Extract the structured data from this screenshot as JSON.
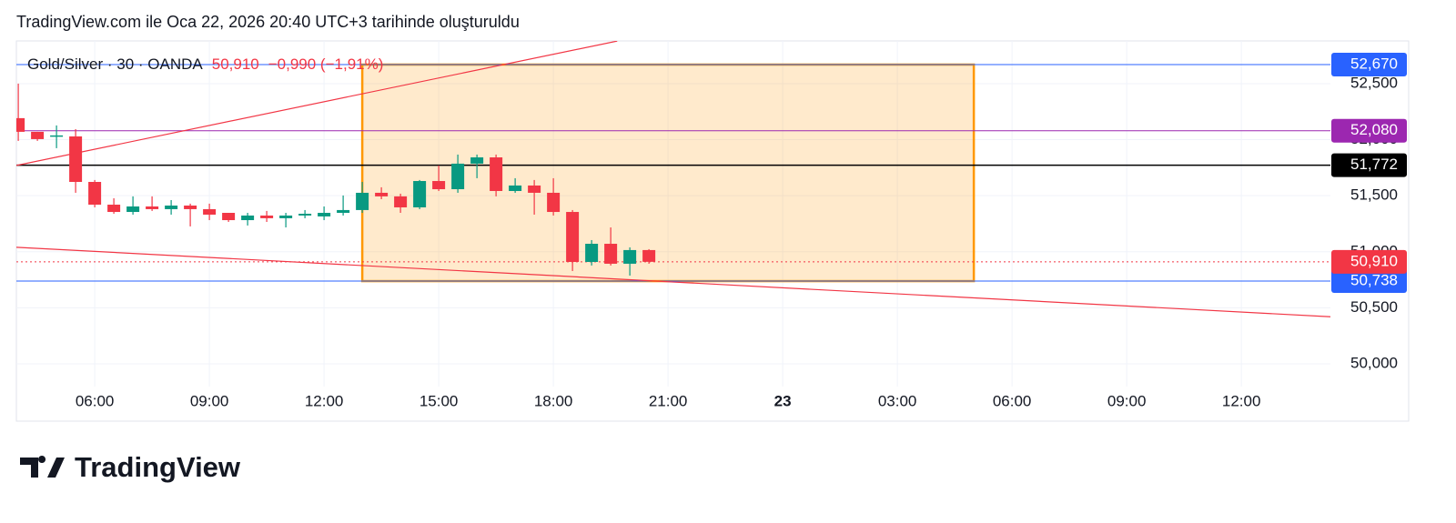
{
  "caption": "TradingView.com ile Oca 22, 2026 20:40 UTC+3 tarihinde oluşturuldu",
  "footer": {
    "brand": "TradingView"
  },
  "chart_data": {
    "type": "candlestick",
    "title": "Gold/Silver · 30 · OANDA",
    "legend_values": [
      "50,910",
      "−0,990 (−1,91%)"
    ],
    "x": [
      4,
      4.5,
      5,
      5.5,
      6,
      6.5,
      7,
      7.5,
      8,
      8.5,
      9,
      9.5,
      10,
      10.5,
      11,
      11.5,
      12,
      12.5,
      13,
      13.5,
      14,
      14.5,
      15,
      15.5,
      16,
      16.5,
      17,
      17.5,
      18,
      18.5,
      19,
      19.5,
      20,
      20.5
    ],
    "open": [
      52.192,
      52.07,
      52.03,
      52.029,
      51.623,
      51.42,
      51.355,
      51.404,
      51.38,
      51.412,
      51.38,
      51.347,
      51.282,
      51.323,
      51.299,
      51.323,
      51.315,
      51.347,
      51.372,
      51.526,
      51.494,
      51.396,
      51.631,
      51.558,
      51.786,
      51.842,
      51.542,
      51.591,
      51.526,
      51.355,
      50.909,
      51.071,
      50.893,
      51.015
    ],
    "high": [
      52.5,
      52.07,
      52.127,
      52.094,
      51.64,
      51.477,
      51.494,
      51.494,
      51.461,
      51.429,
      51.429,
      51.347,
      51.347,
      51.364,
      51.347,
      51.372,
      51.404,
      51.502,
      51.623,
      51.575,
      51.518,
      51.64,
      51.77,
      51.867,
      51.867,
      51.867,
      51.656,
      51.64,
      51.656,
      51.372,
      51.104,
      51.217,
      51.039,
      51.023
    ],
    "low": [
      51.989,
      51.989,
      51.924,
      51.526,
      51.396,
      51.339,
      51.331,
      51.364,
      51.331,
      51.226,
      51.282,
      51.266,
      51.234,
      51.266,
      51.217,
      51.299,
      51.282,
      51.323,
      51.347,
      51.469,
      51.347,
      51.38,
      51.542,
      51.526,
      51.656,
      51.494,
      51.526,
      51.331,
      51.323,
      50.828,
      50.877,
      50.877,
      50.787,
      50.893
    ],
    "close": [
      52.07,
      52.005,
      52.038,
      51.623,
      51.42,
      51.355,
      51.404,
      51.38,
      51.412,
      51.38,
      51.331,
      51.282,
      51.323,
      51.299,
      51.323,
      51.339,
      51.347,
      51.372,
      51.526,
      51.494,
      51.396,
      51.631,
      51.558,
      51.786,
      51.842,
      51.542,
      51.591,
      51.526,
      51.355,
      50.909,
      51.071,
      50.893,
      51.015,
      50.91
    ],
    "up_color": "#089981",
    "down_color": "#f23645",
    "xlim": [
      3.95,
      38.33
    ],
    "ylim": [
      49.797,
      52.881
    ],
    "xticks": [
      {
        "value": 6,
        "label": "06:00"
      },
      {
        "value": 9,
        "label": "09:00"
      },
      {
        "value": 12,
        "label": "12:00"
      },
      {
        "value": 15,
        "label": "15:00"
      },
      {
        "value": 18,
        "label": "18:00"
      },
      {
        "value": 21,
        "label": "21:00"
      },
      {
        "value": 24,
        "label": "23"
      },
      {
        "value": 27,
        "label": "03:00"
      },
      {
        "value": 30,
        "label": "06:00"
      },
      {
        "value": 33,
        "label": "09:00"
      },
      {
        "value": 36,
        "label": "12:00"
      }
    ],
    "yticks": [
      {
        "value": 50,
        "label": "50,000"
      },
      {
        "value": 50.5,
        "label": "50,500"
      },
      {
        "value": 51,
        "label": "51,000"
      },
      {
        "value": 51.5,
        "label": "51,500"
      },
      {
        "value": 52,
        "label": "52,000"
      },
      {
        "value": 52.5,
        "label": "52,500"
      }
    ],
    "grid": true,
    "rectangle": {
      "x": [
        13,
        29
      ],
      "y": [
        50.738,
        52.67
      ],
      "color": "#ff9800"
    },
    "trendlines": [
      {
        "points": [
          [
            3.95,
            51.77
          ],
          [
            19.67,
            52.88
          ]
        ],
        "color": "#f23645"
      },
      {
        "points": [
          [
            3.95,
            51.04
          ],
          [
            38.33,
            50.42
          ]
        ],
        "color": "#f23645"
      }
    ],
    "hlines": [
      {
        "value": 52.67,
        "label": "52,670",
        "color": "#2962ff"
      },
      {
        "value": 52.08,
        "label": "52,080",
        "color": "#9c27b0"
      },
      {
        "value": 51.772,
        "label": "51,772",
        "color": "#000000"
      },
      {
        "value": 50.738,
        "label": "50,738",
        "color": "#2962ff"
      },
      {
        "value": 50.91,
        "label": "50,910",
        "color": "#f23645",
        "dotted": true
      }
    ]
  }
}
